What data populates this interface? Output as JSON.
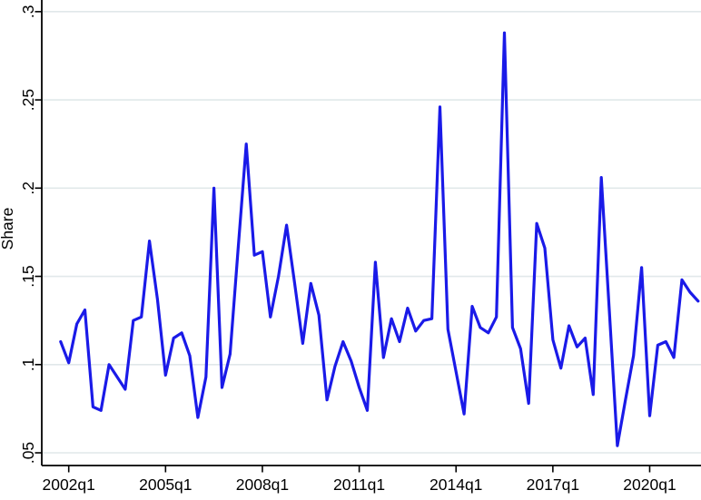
{
  "chart_data": {
    "type": "line",
    "title": "",
    "xlabel": "",
    "ylabel": "Share",
    "ylim": [
      0.05,
      0.3
    ],
    "grid": "horizontal",
    "legend_position": "none",
    "line_color": "#1a1ae8",
    "grid_color": "#e1e8ea",
    "axis_color": "#000000",
    "yticks": [
      {
        "label": ".05",
        "value": 0.05
      },
      {
        "label": ".1",
        "value": 0.1
      },
      {
        "label": ".15",
        "value": 0.15
      },
      {
        "label": ".2",
        "value": 0.2
      },
      {
        "label": ".25",
        "value": 0.25
      },
      {
        "label": ".3",
        "value": 0.3
      }
    ],
    "xticks": [
      "2002q1",
      "2005q1",
      "2008q1",
      "2011q1",
      "2014q1",
      "2017q1",
      "2020q1"
    ],
    "series": [
      {
        "name": "Share",
        "x": [
          "2001q4",
          "2002q1",
          "2002q2",
          "2002q3",
          "2002q4",
          "2003q1",
          "2003q2",
          "2003q3",
          "2003q4",
          "2004q1",
          "2004q2",
          "2004q3",
          "2004q4",
          "2005q1",
          "2005q2",
          "2005q3",
          "2005q4",
          "2006q1",
          "2006q2",
          "2006q3",
          "2006q4",
          "2007q1",
          "2007q2",
          "2007q3",
          "2007q4",
          "2008q1",
          "2008q2",
          "2008q3",
          "2008q4",
          "2009q1",
          "2009q2",
          "2009q3",
          "2009q4",
          "2010q1",
          "2010q2",
          "2010q3",
          "2010q4",
          "2011q1",
          "2011q2",
          "2011q3",
          "2011q4",
          "2012q1",
          "2012q2",
          "2012q3",
          "2012q4",
          "2013q1",
          "2013q2",
          "2013q3",
          "2013q4",
          "2014q1",
          "2014q2",
          "2014q3",
          "2014q4",
          "2015q1",
          "2015q2",
          "2015q3",
          "2015q4",
          "2016q1",
          "2016q2",
          "2016q3",
          "2016q4",
          "2017q1",
          "2017q2",
          "2017q3",
          "2017q4",
          "2018q1",
          "2018q2",
          "2018q3",
          "2018q4",
          "2019q1",
          "2019q2",
          "2019q3",
          "2019q4",
          "2020q1",
          "2020q2",
          "2020q3",
          "2020q4",
          "2021q1",
          "2021q2",
          "2021q3"
        ],
        "values": [
          0.113,
          0.101,
          0.123,
          0.131,
          0.076,
          0.074,
          0.1,
          0.093,
          0.086,
          0.125,
          0.127,
          0.17,
          0.137,
          0.094,
          0.115,
          0.118,
          0.105,
          0.07,
          0.093,
          0.2,
          0.087,
          0.106,
          0.166,
          0.225,
          0.162,
          0.164,
          0.127,
          0.15,
          0.179,
          0.146,
          0.112,
          0.146,
          0.128,
          0.08,
          0.099,
          0.113,
          0.102,
          0.087,
          0.074,
          0.158,
          0.104,
          0.126,
          0.113,
          0.132,
          0.119,
          0.125,
          0.126,
          0.246,
          0.12,
          0.096,
          0.072,
          0.133,
          0.121,
          0.118,
          0.127,
          0.288,
          0.121,
          0.109,
          0.078,
          0.18,
          0.166,
          0.114,
          0.098,
          0.122,
          0.11,
          0.115,
          0.083,
          0.206,
          0.13,
          0.054,
          0.08,
          0.105,
          0.155,
          0.071,
          0.111,
          0.113,
          0.104,
          0.148,
          0.141,
          0.136
        ]
      }
    ]
  }
}
